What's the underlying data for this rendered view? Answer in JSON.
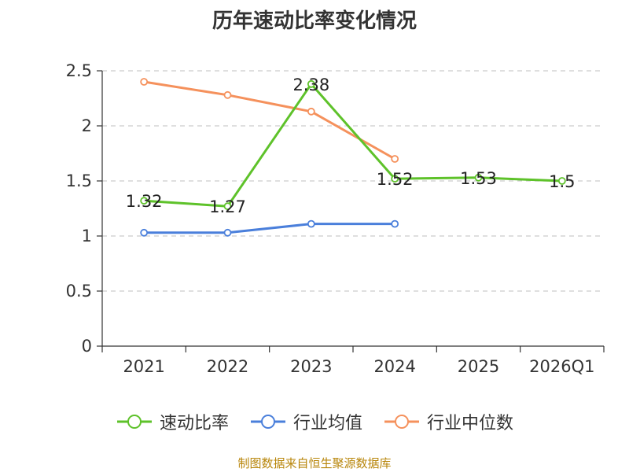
{
  "chart_data": {
    "type": "line",
    "title": "历年速动比率变化情况",
    "categories": [
      "2021",
      "2022",
      "2023",
      "2024",
      "2025",
      "2026Q1"
    ],
    "ylim": [
      0,
      2.5
    ],
    "yticks": [
      "0",
      "0.5",
      "1",
      "1.5",
      "2",
      "2.5"
    ],
    "grid": true,
    "legend_position": "bottom",
    "series": [
      {
        "name": "速动比率",
        "color": "#5ec22a",
        "values": [
          1.32,
          1.27,
          2.38,
          1.52,
          1.53,
          1.5
        ],
        "labels": [
          "1.32",
          "1.27",
          "2.38",
          "1.52",
          "1.53",
          "1.5"
        ]
      },
      {
        "name": "行业均值",
        "color": "#4a7fdb",
        "values": [
          1.03,
          1.03,
          1.11,
          1.11,
          null,
          null
        ]
      },
      {
        "name": "行业中位数",
        "color": "#f5915c",
        "values": [
          2.4,
          2.28,
          2.13,
          1.7,
          null,
          null
        ]
      }
    ]
  },
  "source": "制图数据来自恒生聚源数据库"
}
